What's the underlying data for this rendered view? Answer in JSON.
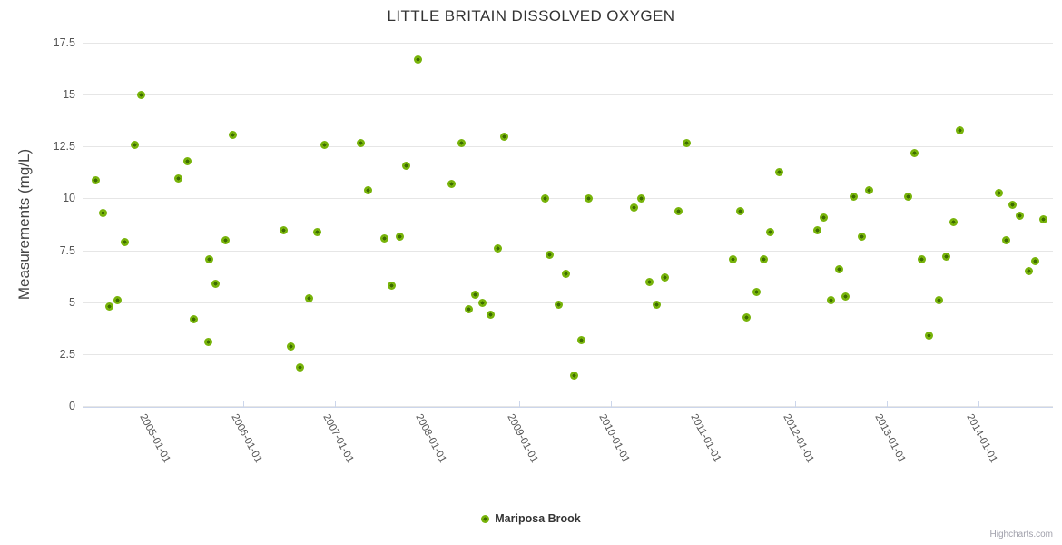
{
  "title": "LITTLE BRITAIN DISSOLVED OXYGEN",
  "y_axis": {
    "title": "Measurements (mg/L)",
    "tick_labels": [
      "0",
      "2.5",
      "5",
      "7.5",
      "10",
      "12.5",
      "15",
      "17.5"
    ],
    "tick_values": [
      0,
      2.5,
      5,
      7.5,
      10,
      12.5,
      15,
      17.5
    ]
  },
  "x_axis": {
    "tick_labels": [
      "2005-01-01",
      "2006-01-01",
      "2007-01-01",
      "2008-01-01",
      "2009-01-01",
      "2010-01-01",
      "2011-01-01",
      "2012-01-01",
      "2013-01-01",
      "2014-01-01"
    ],
    "tick_values": [
      2005,
      2006,
      2007,
      2008,
      2009,
      2010,
      2011,
      2012,
      2013,
      2014
    ]
  },
  "legend": {
    "series_label": "Mariposa Brook"
  },
  "credits": {
    "label": "Highcharts.com"
  },
  "colors": {
    "marker_outer": "#77b30a",
    "marker_inner": "#3e6c00",
    "gridline": "#e6e6e6",
    "axis_line": "#ccd6eb"
  },
  "chart_data": {
    "type": "scatter",
    "title": "LITTLE BRITAIN DISSOLVED OXYGEN",
    "xlabel": "",
    "ylabel": "Measurements (mg/L)",
    "ylim": [
      0,
      17.5
    ],
    "xlim": [
      2004.25,
      2014.81
    ],
    "x_unit": "decimal_year (ticks = Jan 1 of each year)",
    "grid": "horizontal",
    "legend_position": "bottom-center",
    "series": [
      {
        "name": "Mariposa Brook",
        "points": [
          {
            "x": 2004.39,
            "y": 10.9
          },
          {
            "x": 2004.47,
            "y": 9.3
          },
          {
            "x": 2004.54,
            "y": 4.8
          },
          {
            "x": 2004.63,
            "y": 5.1
          },
          {
            "x": 2004.71,
            "y": 7.9
          },
          {
            "x": 2004.82,
            "y": 12.6
          },
          {
            "x": 2004.89,
            "y": 15.0
          },
          {
            "x": 2005.29,
            "y": 11.0
          },
          {
            "x": 2005.39,
            "y": 11.8
          },
          {
            "x": 2005.46,
            "y": 4.2
          },
          {
            "x": 2005.62,
            "y": 3.1
          },
          {
            "x": 2005.63,
            "y": 7.1
          },
          {
            "x": 2005.7,
            "y": 5.9
          },
          {
            "x": 2005.81,
            "y": 8.0
          },
          {
            "x": 2005.88,
            "y": 13.1
          },
          {
            "x": 2006.44,
            "y": 8.5
          },
          {
            "x": 2006.52,
            "y": 2.9
          },
          {
            "x": 2006.62,
            "y": 1.9
          },
          {
            "x": 2006.71,
            "y": 5.2
          },
          {
            "x": 2006.8,
            "y": 8.4
          },
          {
            "x": 2006.88,
            "y": 12.6
          },
          {
            "x": 2007.28,
            "y": 12.7
          },
          {
            "x": 2007.36,
            "y": 10.4
          },
          {
            "x": 2007.53,
            "y": 8.1
          },
          {
            "x": 2007.61,
            "y": 5.8
          },
          {
            "x": 2007.7,
            "y": 8.2
          },
          {
            "x": 2007.77,
            "y": 11.6
          },
          {
            "x": 2007.9,
            "y": 16.7
          },
          {
            "x": 2008.27,
            "y": 10.7
          },
          {
            "x": 2008.37,
            "y": 12.7
          },
          {
            "x": 2008.45,
            "y": 4.7
          },
          {
            "x": 2008.52,
            "y": 5.4
          },
          {
            "x": 2008.6,
            "y": 5.0
          },
          {
            "x": 2008.69,
            "y": 4.4
          },
          {
            "x": 2008.77,
            "y": 7.6
          },
          {
            "x": 2008.84,
            "y": 13.0
          },
          {
            "x": 2009.28,
            "y": 10.0
          },
          {
            "x": 2009.33,
            "y": 7.3
          },
          {
            "x": 2009.43,
            "y": 4.9
          },
          {
            "x": 2009.51,
            "y": 6.4
          },
          {
            "x": 2009.6,
            "y": 1.5
          },
          {
            "x": 2009.68,
            "y": 3.2
          },
          {
            "x": 2009.76,
            "y": 10.0
          },
          {
            "x": 2010.25,
            "y": 9.6
          },
          {
            "x": 2010.33,
            "y": 10.0
          },
          {
            "x": 2010.42,
            "y": 6.0
          },
          {
            "x": 2010.5,
            "y": 4.9
          },
          {
            "x": 2010.59,
            "y": 6.2
          },
          {
            "x": 2010.74,
            "y": 9.4
          },
          {
            "x": 2010.82,
            "y": 12.7
          },
          {
            "x": 2011.33,
            "y": 7.1
          },
          {
            "x": 2011.41,
            "y": 9.4
          },
          {
            "x": 2011.48,
            "y": 4.3
          },
          {
            "x": 2011.58,
            "y": 5.5
          },
          {
            "x": 2011.66,
            "y": 7.1
          },
          {
            "x": 2011.73,
            "y": 8.4
          },
          {
            "x": 2011.83,
            "y": 11.3
          },
          {
            "x": 2012.25,
            "y": 8.5
          },
          {
            "x": 2012.32,
            "y": 9.1
          },
          {
            "x": 2012.39,
            "y": 5.1
          },
          {
            "x": 2012.48,
            "y": 6.6
          },
          {
            "x": 2012.55,
            "y": 5.3
          },
          {
            "x": 2012.64,
            "y": 10.1
          },
          {
            "x": 2012.73,
            "y": 8.2
          },
          {
            "x": 2012.81,
            "y": 10.4
          },
          {
            "x": 2013.23,
            "y": 10.1
          },
          {
            "x": 2013.3,
            "y": 12.2
          },
          {
            "x": 2013.38,
            "y": 7.1
          },
          {
            "x": 2013.46,
            "y": 3.4
          },
          {
            "x": 2013.57,
            "y": 5.1
          },
          {
            "x": 2013.65,
            "y": 7.2
          },
          {
            "x": 2013.73,
            "y": 8.9
          },
          {
            "x": 2013.8,
            "y": 13.3
          },
          {
            "x": 2014.22,
            "y": 10.3
          },
          {
            "x": 2014.3,
            "y": 8.0
          },
          {
            "x": 2014.37,
            "y": 9.7
          },
          {
            "x": 2014.45,
            "y": 9.2
          },
          {
            "x": 2014.55,
            "y": 6.5
          },
          {
            "x": 2014.62,
            "y": 7.0
          },
          {
            "x": 2014.71,
            "y": 9.0
          }
        ]
      }
    ]
  }
}
